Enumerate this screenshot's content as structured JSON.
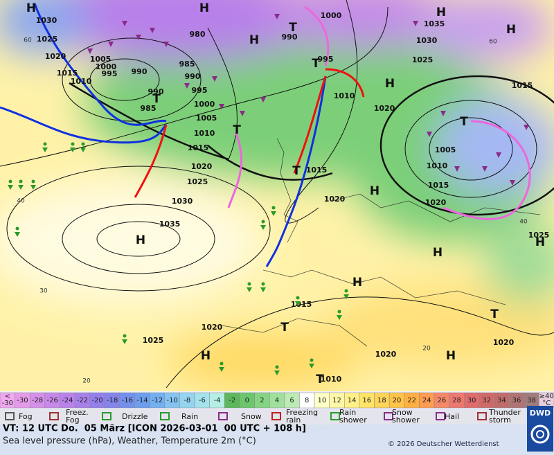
{
  "map": {
    "isobar_labels": [
      "1030",
      "1025",
      "1020",
      "1015",
      "1010",
      "1005",
      "1000",
      "995",
      "990",
      "980",
      "985",
      "990",
      "995",
      "1000",
      "1005",
      "1010",
      "1015",
      "1020",
      "1025",
      "1030",
      "1035",
      "990",
      "985",
      "990",
      "1000",
      "995",
      "1010",
      "1020",
      "1015",
      "1020",
      "1035",
      "1030",
      "1025",
      "1015",
      "1005",
      "1010",
      "1015",
      "1020",
      "1025",
      "1015",
      "1020",
      "1025",
      "1020",
      "1020",
      "1010"
    ],
    "centers": [
      "H",
      "H",
      "T",
      "H",
      "H",
      "H",
      "T",
      "T",
      "T",
      "H",
      "T",
      "T",
      "H",
      "H",
      "H",
      "H",
      "H",
      "T",
      "T",
      "H",
      "H",
      "T"
    ],
    "temperature_labels": [
      "60",
      "40",
      "30",
      "20",
      "60",
      "40",
      "20"
    ]
  },
  "scale": {
    "low_label": [
      "<",
      "-30"
    ],
    "values": [
      "-30",
      "-28",
      "-26",
      "-24",
      "-22",
      "-20",
      "-18",
      "-16",
      "-14",
      "-12",
      "-10",
      "-8",
      "-6",
      "-4",
      "-2",
      "0",
      "2",
      "4",
      "6",
      "8",
      "10",
      "12",
      "14",
      "16",
      "18",
      "20",
      "22",
      "24",
      "26",
      "28",
      "30",
      "32",
      "34",
      "36",
      "38"
    ],
    "high_label": [
      "≥40",
      "°C"
    ],
    "colors": [
      "#f0a8f0",
      "#e49be8",
      "#d690ea",
      "#c888ea",
      "#b882ea",
      "#a880ea",
      "#9480ea",
      "#8484ea",
      "#7490ec",
      "#6c9eee",
      "#74b0f0",
      "#84c4f2",
      "#94d4f0",
      "#a4e2ec",
      "#b4eee4",
      "#5cb85c",
      "#6cc66c",
      "#84d484",
      "#a0e09c",
      "#bcebb4",
      "#ffffff",
      "#ffffc8",
      "#fff8a8",
      "#fff088",
      "#ffe468",
      "#ffd458",
      "#ffc448",
      "#ffb040",
      "#ff9c50",
      "#f48868",
      "#ec7870",
      "#e06c6c",
      "#d06a6a",
      "#c06c6c",
      "#b07474",
      "#a07c7c",
      "#e8d0e0"
    ]
  },
  "legend": {
    "items": [
      [
        "Fog"
      ],
      [
        "Freez.",
        "Fog"
      ],
      [
        "Drizzle"
      ],
      [
        "Rain"
      ],
      [
        "Snow"
      ],
      [
        "Freezing",
        "rain"
      ],
      [
        "Rain",
        "shower"
      ],
      [
        "Snow",
        "shower"
      ],
      [
        "Hail"
      ],
      [
        "Thunder",
        "storm"
      ]
    ]
  },
  "footer": {
    "line1": "VT: 12 UTC Do.  05 März [ICON 2026-03-01  00 UTC + 108 h]",
    "line2": "Sea level pressure (hPa), Weather, Temperature 2m (°C)",
    "copyright": "© 2026 Deutscher Wetterdienst",
    "logo": "DWD"
  }
}
